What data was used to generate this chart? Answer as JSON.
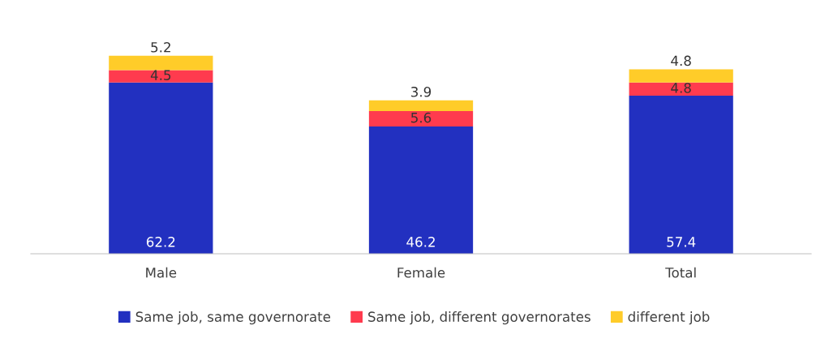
{
  "chart_data": {
    "type": "bar",
    "stacked": true,
    "data_labels": true,
    "legend": "bottom",
    "grid": false,
    "categories": [
      "Male",
      "Female",
      "Total"
    ],
    "series": [
      {
        "name": "Same job, same governorate",
        "color": "#2230c0",
        "values": [
          62.2,
          46.2,
          57.4
        ]
      },
      {
        "name": "Same job, different governorates",
        "color": "#ff3b4e",
        "values": [
          4.5,
          5.6,
          4.8
        ]
      },
      {
        "name": "different job",
        "color": "#ffcc29",
        "values": [
          5.2,
          3.9,
          4.8
        ]
      }
    ]
  }
}
